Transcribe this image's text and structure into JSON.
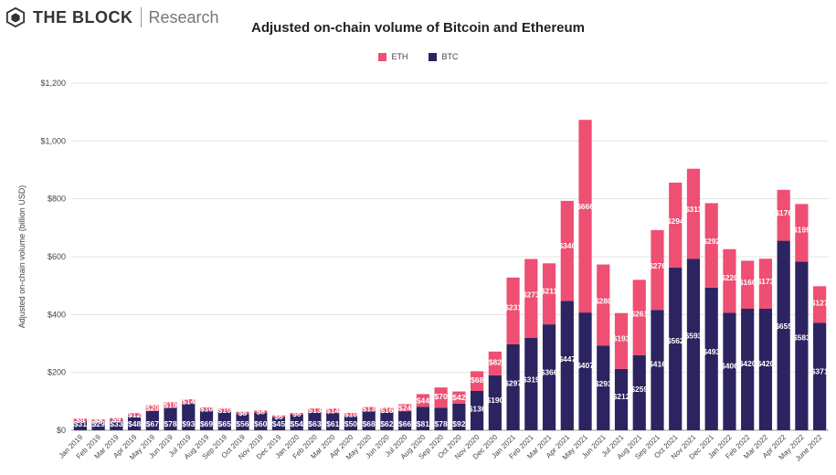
{
  "brand": {
    "name": "THE BLOCK",
    "sub": "Research"
  },
  "chart_data": {
    "type": "bar",
    "stacked": true,
    "title": "Adjusted on-chain volume of Bitcoin and Ethereum",
    "xlabel": "",
    "ylabel": "Adjusted on-chain volume (billion USD)",
    "ylim": [
      0,
      1200
    ],
    "yticks": [
      0,
      200,
      400,
      600,
      800,
      1000,
      1200
    ],
    "ytick_labels": [
      "$0",
      "$200",
      "$400",
      "$600",
      "$800",
      "$1,000",
      "$1,200"
    ],
    "grid": true,
    "legend_position": "top-center",
    "categories": [
      "Jan 2019",
      "Feb 2019",
      "Mar 2019",
      "Apr 2019",
      "May 2019",
      "Jun 2019",
      "Jul 2019",
      "Aug 2019",
      "Sep 2019",
      "Oct 2019",
      "Nov 2019",
      "Dec 2019",
      "Jan 2020",
      "Feb 2020",
      "Mar 2020",
      "Apr 2020",
      "May 2020",
      "Jun 2020",
      "Jul 2020",
      "Aug 2020",
      "Sep 2020",
      "Oct 2020",
      "Nov 2020",
      "Dec 2020",
      "Jan 2021",
      "Feb 2021",
      "Mar 2021",
      "Apr 2021",
      "May 2021",
      "Jun 2021",
      "Jul 2021",
      "Aug 2021",
      "Sep 2021",
      "Oct 2021",
      "Nov 2021",
      "Dec 2021",
      "Jan 2022",
      "Feb 2022",
      "Mar 2022",
      "Apr 2022",
      "May 2022",
      "June 2022"
    ],
    "series": [
      {
        "name": "BTC",
        "color": "#2b2461",
        "values": [
          31,
          29,
          33,
          48,
          67,
          78,
          93,
          69,
          65,
          56,
          60,
          45,
          54,
          63,
          61,
          50,
          68,
          62,
          66,
          81,
          78,
          92,
          136,
          190,
          297,
          319,
          366,
          447,
          407,
          293,
          212,
          259,
          416,
          562,
          593,
          493,
          406,
          420,
          420,
          655,
          583,
          371
        ],
        "labels": [
          "$31",
          "$29",
          "$33",
          "$48",
          "$67",
          "$78",
          "$93",
          "$69",
          "$65",
          "$56",
          "$60",
          "$45",
          "$54",
          "$63",
          "$61",
          "$50",
          "$68",
          "$62",
          "$66",
          "$81",
          "$78",
          "$92",
          "$136",
          "$190",
          "$297",
          "$319",
          "$366",
          "$447",
          "$407",
          "$293",
          "$212",
          "$259",
          "$416",
          "$562",
          "$593",
          "$493",
          "$406",
          "$420",
          "$420",
          "$655",
          "$583",
          "$371"
        ]
      },
      {
        "name": "ETH",
        "color": "#ee4f72",
        "values": [
          9,
          8,
          9,
          12,
          20,
          19,
          14,
          10,
          10,
          8,
          8,
          6,
          6,
          13,
          14,
          10,
          13,
          16,
          24,
          44,
          70,
          42,
          68,
          82,
          231,
          273,
          211,
          346,
          666,
          280,
          193,
          261,
          276,
          294,
          311,
          292,
          220,
          166,
          173,
          176,
          199,
          127
        ],
        "labels": [
          "$9",
          "$8",
          "$9",
          "$12",
          "$20",
          "$19",
          "$14",
          "$10",
          "$10",
          "$8",
          "$8",
          "$6",
          "$6",
          "$13",
          "$14",
          "$10",
          "$13",
          "$16",
          "$24",
          "$44",
          "$70",
          "$42",
          "$68",
          "$82",
          "$231",
          "$273",
          "$211",
          "$346",
          "$666",
          "$280",
          "$193",
          "$261",
          "$276",
          "$294",
          "$311",
          "$292",
          "$220",
          "$166",
          "$173",
          "$176",
          "$199",
          "$127"
        ]
      }
    ]
  }
}
